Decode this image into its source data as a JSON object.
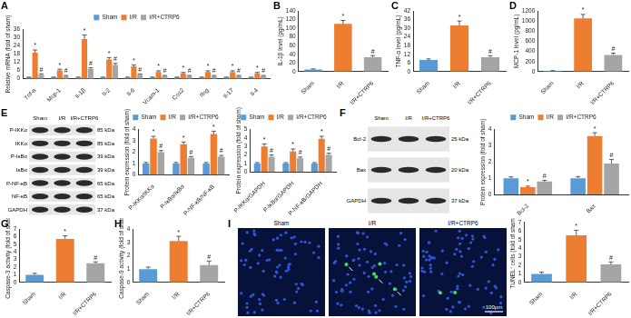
{
  "chart_data": [
    {
      "panel": "A",
      "type": "bar",
      "y_label": "Relative mRNA (fold of sham)",
      "categories": [
        "Tnf-a",
        "Mcp-1",
        "Il-1β",
        "Il-2",
        "Il-6",
        "Vcam-1",
        "Cox2",
        "Ifng",
        "Il-17",
        "Il-4"
      ],
      "series": [
        {
          "name": "Sham",
          "color": "#5b9bd5",
          "values": [
            1,
            1,
            1,
            1,
            1,
            1,
            1,
            1,
            1,
            1
          ],
          "errors": [
            0.2,
            0.2,
            0.2,
            0.2,
            0.2,
            0.2,
            0.2,
            0.2,
            0.2,
            0.2
          ]
        },
        {
          "name": "I/R",
          "color": "#ed7d31",
          "values": [
            19,
            6,
            29,
            14,
            9,
            5,
            4,
            5,
            5,
            4
          ],
          "errors": [
            2,
            1,
            3,
            1.5,
            1,
            0.8,
            0.6,
            0.8,
            0.8,
            0.6
          ]
        },
        {
          "name": "I/R+CTRP6",
          "color": "#a5a5a5",
          "values": [
            3,
            2,
            7,
            10,
            3,
            2,
            2,
            2,
            2,
            2
          ],
          "errors": [
            0.6,
            0.4,
            1,
            1.2,
            0.5,
            0.4,
            0.4,
            0.4,
            0.4,
            0.4
          ]
        }
      ],
      "annotations": [
        {
          "series": "I/R",
          "text": "*"
        },
        {
          "series": "I/R+CTRP6",
          "text": "#"
        }
      ],
      "ylim": [
        0,
        36
      ],
      "yticks": [
        0,
        6,
        12,
        18,
        24,
        30,
        36
      ],
      "grid": false,
      "legend": "top"
    },
    {
      "panel": "B",
      "type": "bar",
      "y_label": "IL-1β level (pg/mL)",
      "categories": [
        "Sham",
        "I/R",
        "I/R+CTRP6"
      ],
      "values": [
        5,
        110,
        33
      ],
      "errors": [
        1.5,
        8,
        4
      ],
      "colors": [
        "#5b9bd5",
        "#ed7d31",
        "#a5a5a5"
      ],
      "annotations": [
        {
          "category": "I/R",
          "text": "*"
        },
        {
          "category": "I/R+CTRP6",
          "text": "#"
        }
      ],
      "ylim": [
        0,
        140
      ],
      "yticks": [
        0,
        20,
        40,
        60,
        80,
        100,
        120,
        140
      ],
      "grid": false
    },
    {
      "panel": "C",
      "type": "bar",
      "y_label": "TNF-α level (pg/mL)",
      "categories": [
        "Sham",
        "I/R",
        "I/R+CTRP6"
      ],
      "values": [
        8,
        32,
        10
      ],
      "errors": [
        0.8,
        3,
        1
      ],
      "colors": [
        "#5b9bd5",
        "#ed7d31",
        "#a5a5a5"
      ],
      "annotations": [
        {
          "category": "I/R",
          "text": "*"
        },
        {
          "category": "I/R+CTRP6",
          "text": "#"
        }
      ],
      "ylim": [
        0,
        42
      ],
      "yticks": [
        0,
        6,
        12,
        18,
        24,
        30,
        36,
        42
      ],
      "grid": false
    },
    {
      "panel": "D",
      "type": "bar",
      "y_label": "MCP-1 level (pg/mL)",
      "categories": [
        "Sham",
        "I/R",
        "I/R+CTRP6"
      ],
      "values": [
        15,
        1050,
        330
      ],
      "errors": [
        5,
        80,
        35
      ],
      "colors": [
        "#5b9bd5",
        "#ed7d31",
        "#a5a5a5"
      ],
      "annotations": [
        {
          "category": "I/R",
          "text": "*"
        },
        {
          "category": "I/R+CTRP6",
          "text": "#"
        }
      ],
      "ylim": [
        0,
        1200
      ],
      "yticks": [
        0,
        200,
        400,
        600,
        800,
        1000,
        1200
      ],
      "grid": false
    },
    {
      "type": "bar",
      "y_label": "Protein expression (fold of sham)",
      "categories": [
        "P-IKKα/IKKα",
        "P-IκBα/IκBα",
        "P-NF-κB/NF-κB"
      ],
      "series": [
        {
          "name": "Sham",
          "color": "#5b9bd5",
          "values": [
            1,
            1,
            1
          ],
          "errors": [
            0.1,
            0.1,
            0.1
          ]
        },
        {
          "name": "I/R",
          "color": "#ed7d31",
          "values": [
            3.2,
            2.7,
            3.6
          ],
          "errors": [
            0.2,
            0.2,
            0.25
          ]
        },
        {
          "name": "I/R+CTRP6",
          "color": "#a5a5a5",
          "values": [
            2,
            1.5,
            1.6
          ],
          "errors": [
            0.15,
            0.12,
            0.12
          ]
        }
      ],
      "annotations": [
        {
          "series": "I/R",
          "text": "*"
        },
        {
          "series": "I/R+CTRP6",
          "text": "#"
        }
      ],
      "ylim": [
        0,
        4
      ],
      "yticks": [
        0,
        1,
        2,
        3,
        4
      ],
      "grid": false,
      "legend": "top"
    },
    {
      "type": "bar",
      "y_label": "Protein expression (fold of sham)",
      "categories": [
        "P-IKKα/GAPDH",
        "P-IκBα/GAPDH",
        "P-NF-κB/GAPDH"
      ],
      "series": [
        {
          "name": "Sham",
          "color": "#5b9bd5",
          "values": [
            1,
            1,
            1
          ],
          "errors": [
            0.1,
            0.1,
            0.1
          ]
        },
        {
          "name": "I/R",
          "color": "#ed7d31",
          "values": [
            3,
            2.4,
            3.9
          ],
          "errors": [
            0.3,
            0.3,
            0.3
          ]
        },
        {
          "name": "I/R+CTRP6",
          "color": "#a5a5a5",
          "values": [
            1.8,
            1.6,
            2
          ],
          "errors": [
            0.2,
            0.15,
            0.2
          ]
        }
      ],
      "annotations": [
        {
          "series": "I/R",
          "text": "*"
        },
        {
          "series": "I/R+CTRP6",
          "text": "#"
        }
      ],
      "ylim": [
        0,
        5
      ],
      "yticks": [
        0,
        1,
        2,
        3,
        4,
        5
      ],
      "grid": false,
      "legend": "top"
    },
    {
      "type": "bar",
      "y_label": "Protein expression (fold of sham)",
      "categories": [
        "Bcl-2",
        "Bax"
      ],
      "series": [
        {
          "name": "Sham",
          "color": "#5b9bd5",
          "values": [
            1,
            1
          ],
          "errors": [
            0.08,
            0.1
          ]
        },
        {
          "name": "I/R",
          "color": "#ed7d31",
          "values": [
            0.45,
            3.6
          ],
          "errors": [
            0.06,
            0.2
          ]
        },
        {
          "name": "I/R+CTRP6",
          "color": "#a5a5a5",
          "values": [
            0.8,
            1.9
          ],
          "errors": [
            0.07,
            0.25
          ]
        }
      ],
      "annotations": [
        {
          "series": "I/R",
          "text": "*"
        },
        {
          "series": "I/R+CTRP6",
          "text": "#"
        }
      ],
      "ylim": [
        0,
        4
      ],
      "yticks": [
        0,
        1,
        2,
        3,
        4
      ],
      "grid": false,
      "legend": "top"
    },
    {
      "panel": "G",
      "type": "bar",
      "y_label": "Caspase-3 activity (fold of sham)",
      "categories": [
        "Sham",
        "I/R",
        "I/R+CTRP6"
      ],
      "values": [
        1,
        5.7,
        2.5
      ],
      "errors": [
        0.2,
        0.4,
        0.2
      ],
      "colors": [
        "#5b9bd5",
        "#ed7d31",
        "#a5a5a5"
      ],
      "annotations": [
        {
          "category": "I/R",
          "text": "*"
        },
        {
          "category": "I/R+CTRP6",
          "text": "#"
        }
      ],
      "ylim": [
        0,
        7
      ],
      "yticks": [
        0,
        1,
        2,
        3,
        4,
        5,
        6,
        7
      ],
      "grid": false
    },
    {
      "panel": "H",
      "type": "bar",
      "y_label": "Caspase-9 activity (fold of sham)",
      "categories": [
        "Sham",
        "I/R",
        "I/R+CTRP6"
      ],
      "values": [
        1,
        3.1,
        1.3
      ],
      "errors": [
        0.15,
        0.35,
        0.3
      ],
      "colors": [
        "#5b9bd5",
        "#ed7d31",
        "#a5a5a5"
      ],
      "annotations": [
        {
          "category": "I/R",
          "text": "*"
        },
        {
          "category": "I/R+CTRP6",
          "text": "#"
        }
      ],
      "ylim": [
        0,
        4
      ],
      "yticks": [
        0,
        1,
        2,
        3,
        4
      ],
      "grid": false
    },
    {
      "type": "bar",
      "y_label": "TUNEL⁺ cells (fold of sham)",
      "categories": [
        "Sham",
        "I/R",
        "I/R+CTRP6"
      ],
      "values": [
        1,
        5.5,
        2.1
      ],
      "errors": [
        0.2,
        0.6,
        0.3
      ],
      "colors": [
        "#5b9bd5",
        "#ed7d31",
        "#a5a5a5"
      ],
      "annotations": [
        {
          "category": "I/R",
          "text": "*"
        },
        {
          "category": "I/R+CTRP6",
          "text": "#"
        }
      ],
      "ylim": [
        0,
        7
      ],
      "yticks": [
        0,
        1,
        2,
        3,
        4,
        5,
        6,
        7
      ],
      "grid": false
    }
  ],
  "blots": [
    {
      "panel": "E",
      "columns": [
        "Sham",
        "I/R",
        "I/R+CTRP6"
      ],
      "rows": [
        {
          "label": "P-IKKα",
          "size": "85 kDa"
        },
        {
          "label": "IKKα",
          "size": "85 kDa"
        },
        {
          "label": "P-IκBα",
          "size": "39 kDa"
        },
        {
          "label": "IκBα",
          "size": "39 kDa"
        },
        {
          "label": "P-NF-κB",
          "size": "65 kDa"
        },
        {
          "label": "NF-κB",
          "size": "65 kDa"
        },
        {
          "label": "GAPDH",
          "size": "37 kDa"
        }
      ]
    },
    {
      "panel": "F",
      "columns": [
        "Sham",
        "I/R",
        "I/R+CTRP6"
      ],
      "rows": [
        {
          "label": "Bcl-2",
          "size": "25 kDa"
        },
        {
          "label": "Bax",
          "size": "20 kDa"
        },
        {
          "label": "GAPDH",
          "size": "37 kDa"
        }
      ]
    }
  ],
  "images": [
    {
      "panel": "I",
      "columns": [
        "Sham",
        "I/R",
        "I/R+CTRP6"
      ],
      "scale_bar": "100μm"
    }
  ]
}
